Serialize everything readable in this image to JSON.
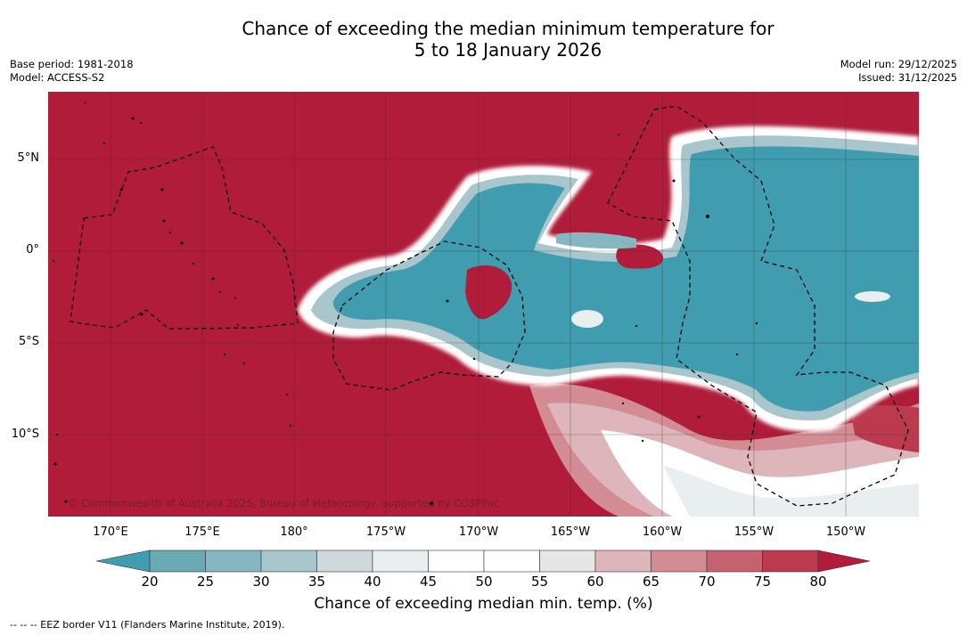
{
  "title": {
    "line1": "Chance of exceeding the median minimum temperature for",
    "line2": "5 to 18 January 2026"
  },
  "meta_left": {
    "base_period": "Base period: 1981-2018",
    "model": "Model: ACCESS-S2"
  },
  "meta_right": {
    "model_run": "Model run: 29/12/2025",
    "issued": "Issued: 31/12/2025"
  },
  "map": {
    "lat_labels": [
      "5°N",
      "0°",
      "5°S",
      "10°S"
    ],
    "lon_labels": [
      "170°E",
      "175°E",
      "180°",
      "175°W",
      "170°W",
      "165°W",
      "160°W",
      "155°W",
      "150°W"
    ],
    "credit": "© Commonwealth of Australia 2025, Bureau of Meteorology, supported by COSPPac"
  },
  "colorbar": {
    "ticks": [
      "20",
      "25",
      "30",
      "35",
      "40",
      "45",
      "50",
      "55",
      "60",
      "65",
      "70",
      "75",
      "80"
    ],
    "colors": {
      "below_20": "#3f9daf",
      "20_25": "#6aaab6",
      "25_30": "#86b6c0",
      "30_35": "#a8c6cb",
      "35_40": "#cfd8da",
      "40_45": "#e9eef0",
      "45_50": "#ffffff",
      "50_55": "#ffffff",
      "55_60": "#e6e6e6",
      "60_65": "#ddb5ba",
      "65_70": "#d38c94",
      "70_75": "#c6616f",
      "75_80": "#bc3a4e",
      "above_80": "#b01c3a"
    },
    "label": "Chance of exceeding median min. temp. (%)"
  },
  "footnote": "--  --  -- EEZ border V11 (Flanders Marine Institute, 2019)."
}
